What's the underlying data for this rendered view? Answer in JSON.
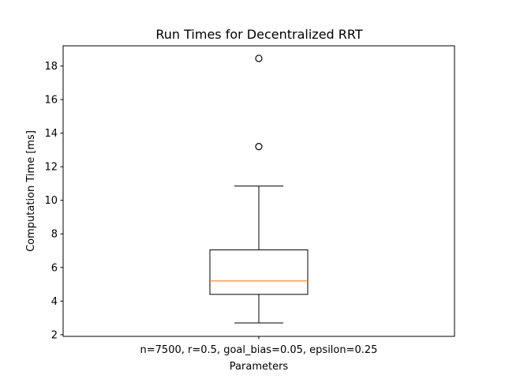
{
  "chart_data": {
    "type": "boxplot",
    "title": "Run Times for Decentralized RRT",
    "xlabel": "Parameters",
    "ylabel": "Computation Time [ms]",
    "categories": [
      "n=7500, r=0.5, goal_bias=0.05, epsilon=0.25"
    ],
    "ylim": [
      1.9,
      19.2
    ],
    "yticks": [
      2,
      4,
      6,
      8,
      10,
      12,
      14,
      16,
      18
    ],
    "grid": false,
    "boxes": [
      {
        "whisker_low": 2.7,
        "q1": 4.4,
        "median": 5.2,
        "q3": 7.05,
        "whisker_high": 10.85,
        "outliers": [
          13.2,
          18.45
        ]
      }
    ],
    "colors": {
      "box": "#000000",
      "median": "#ff7f0e",
      "outlier": "#000000"
    }
  }
}
